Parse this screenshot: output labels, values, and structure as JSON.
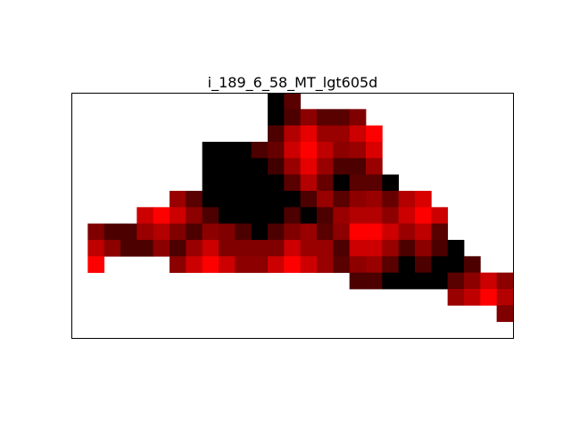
{
  "chart_data": {
    "type": "heatmap",
    "title": "i_189_6_58_MT_lgt605d",
    "cols": 27,
    "rows": 15,
    "color_scale": [
      "#000000",
      "#ff0000"
    ],
    "axes_visible": false,
    "grid": false,
    "cells": [
      [
        12,
        0,
        0
      ],
      [
        13,
        0,
        0.35
      ],
      [
        12,
        1,
        0
      ],
      [
        13,
        1,
        0.3
      ],
      [
        14,
        1,
        0.55
      ],
      [
        15,
        1,
        0.35
      ],
      [
        16,
        1,
        0.35
      ],
      [
        17,
        1,
        0.5
      ],
      [
        12,
        2,
        0.3
      ],
      [
        13,
        2,
        0.7
      ],
      [
        14,
        2,
        0.9
      ],
      [
        15,
        2,
        0.6
      ],
      [
        16,
        2,
        0.6
      ],
      [
        17,
        2,
        0.8
      ],
      [
        18,
        2,
        1.0
      ],
      [
        8,
        3,
        0
      ],
      [
        9,
        3,
        0
      ],
      [
        10,
        3,
        0
      ],
      [
        11,
        3,
        0.3
      ],
      [
        12,
        3,
        0.4
      ],
      [
        13,
        3,
        0.8
      ],
      [
        14,
        3,
        1.0
      ],
      [
        15,
        3,
        0.75
      ],
      [
        16,
        3,
        0.55
      ],
      [
        17,
        3,
        0.6
      ],
      [
        18,
        3,
        0.85
      ],
      [
        8,
        4,
        0
      ],
      [
        9,
        4,
        0
      ],
      [
        10,
        4,
        0
      ],
      [
        11,
        4,
        0
      ],
      [
        12,
        4,
        0.25
      ],
      [
        13,
        4,
        0.6
      ],
      [
        14,
        4,
        0.9
      ],
      [
        15,
        4,
        0.6
      ],
      [
        16,
        4,
        0.3
      ],
      [
        17,
        4,
        0.3
      ],
      [
        18,
        4,
        0.6
      ],
      [
        8,
        5,
        0
      ],
      [
        9,
        5,
        0
      ],
      [
        10,
        5,
        0
      ],
      [
        11,
        5,
        0
      ],
      [
        12,
        5,
        0
      ],
      [
        13,
        5,
        0.35
      ],
      [
        14,
        5,
        0.7
      ],
      [
        15,
        5,
        0.4
      ],
      [
        16,
        5,
        0
      ],
      [
        17,
        5,
        0.35
      ],
      [
        18,
        5,
        0.35
      ],
      [
        19,
        5,
        0
      ],
      [
        6,
        6,
        0.6
      ],
      [
        7,
        6,
        0.35
      ],
      [
        8,
        6,
        0
      ],
      [
        9,
        6,
        0
      ],
      [
        10,
        6,
        0
      ],
      [
        11,
        6,
        0
      ],
      [
        12,
        6,
        0
      ],
      [
        13,
        6,
        0
      ],
      [
        14,
        6,
        0.3
      ],
      [
        15,
        6,
        0.6
      ],
      [
        16,
        6,
        0.35
      ],
      [
        17,
        6,
        0.55
      ],
      [
        18,
        6,
        0.6
      ],
      [
        19,
        6,
        0.4
      ],
      [
        20,
        6,
        0.7
      ],
      [
        21,
        6,
        0.85
      ],
      [
        4,
        7,
        0.8
      ],
      [
        5,
        7,
        1.0
      ],
      [
        6,
        7,
        0.8
      ],
      [
        7,
        7,
        0.55
      ],
      [
        8,
        7,
        0.3
      ],
      [
        9,
        7,
        0
      ],
      [
        10,
        7,
        0
      ],
      [
        11,
        7,
        0
      ],
      [
        12,
        7,
        0
      ],
      [
        13,
        7,
        0.3
      ],
      [
        14,
        7,
        0
      ],
      [
        15,
        7,
        0.3
      ],
      [
        16,
        7,
        0.6
      ],
      [
        17,
        7,
        0.7
      ],
      [
        18,
        7,
        0.7
      ],
      [
        19,
        7,
        0.55
      ],
      [
        20,
        7,
        0.8
      ],
      [
        21,
        7,
        1.0
      ],
      [
        22,
        7,
        0.8
      ],
      [
        1,
        8,
        0.5
      ],
      [
        2,
        8,
        0.3
      ],
      [
        3,
        8,
        0.3
      ],
      [
        4,
        8,
        0.6
      ],
      [
        5,
        8,
        0.7
      ],
      [
        6,
        8,
        0.5
      ],
      [
        7,
        8,
        0.3
      ],
      [
        8,
        8,
        0.55
      ],
      [
        9,
        8,
        0.5
      ],
      [
        10,
        8,
        0.3
      ],
      [
        11,
        8,
        0
      ],
      [
        12,
        8,
        0.3
      ],
      [
        13,
        8,
        0.5
      ],
      [
        14,
        8,
        0.6
      ],
      [
        15,
        8,
        0.35
      ],
      [
        16,
        8,
        0.55
      ],
      [
        17,
        8,
        1.0
      ],
      [
        18,
        8,
        1.0
      ],
      [
        19,
        8,
        0.8
      ],
      [
        20,
        8,
        0.6
      ],
      [
        21,
        8,
        0.75
      ],
      [
        22,
        8,
        0.35
      ],
      [
        1,
        9,
        0.75
      ],
      [
        2,
        9,
        0.55
      ],
      [
        3,
        9,
        0.3
      ],
      [
        4,
        9,
        0.3
      ],
      [
        5,
        9,
        0.55
      ],
      [
        6,
        9,
        0.3
      ],
      [
        7,
        9,
        0.6
      ],
      [
        8,
        9,
        0.8
      ],
      [
        9,
        9,
        0.5
      ],
      [
        10,
        9,
        0.5
      ],
      [
        11,
        9,
        0.5
      ],
      [
        12,
        9,
        0.5
      ],
      [
        13,
        9,
        0.8
      ],
      [
        14,
        9,
        0.6
      ],
      [
        15,
        9,
        0.6
      ],
      [
        16,
        9,
        0.3
      ],
      [
        17,
        9,
        0.8
      ],
      [
        18,
        9,
        0.8
      ],
      [
        19,
        9,
        0.6
      ],
      [
        20,
        9,
        0.3
      ],
      [
        21,
        9,
        0.55
      ],
      [
        22,
        9,
        0.3
      ],
      [
        23,
        9,
        0
      ],
      [
        1,
        10,
        1.0
      ],
      [
        6,
        10,
        0.55
      ],
      [
        7,
        10,
        0.8
      ],
      [
        8,
        10,
        1.0
      ],
      [
        9,
        10,
        0.8
      ],
      [
        10,
        10,
        0.55
      ],
      [
        11,
        10,
        0.55
      ],
      [
        12,
        10,
        0.8
      ],
      [
        13,
        10,
        1.0
      ],
      [
        14,
        10,
        0.8
      ],
      [
        15,
        10,
        0.6
      ],
      [
        16,
        10,
        0.35
      ],
      [
        17,
        10,
        0.55
      ],
      [
        18,
        10,
        0.6
      ],
      [
        19,
        10,
        0.35
      ],
      [
        20,
        10,
        0
      ],
      [
        21,
        10,
        0.3
      ],
      [
        22,
        10,
        0
      ],
      [
        23,
        10,
        0
      ],
      [
        24,
        10,
        0.3
      ],
      [
        17,
        11,
        0.3
      ],
      [
        18,
        11,
        0.3
      ],
      [
        19,
        11,
        0
      ],
      [
        20,
        11,
        0
      ],
      [
        21,
        11,
        0
      ],
      [
        22,
        11,
        0
      ],
      [
        23,
        11,
        0.35
      ],
      [
        24,
        11,
        0.55
      ],
      [
        25,
        11,
        0.8
      ],
      [
        26,
        11,
        0.55
      ],
      [
        23,
        12,
        0.6
      ],
      [
        24,
        12,
        0.75
      ],
      [
        25,
        12,
        1.0
      ],
      [
        26,
        12,
        0.7
      ],
      [
        26,
        13,
        0.5
      ]
    ]
  }
}
